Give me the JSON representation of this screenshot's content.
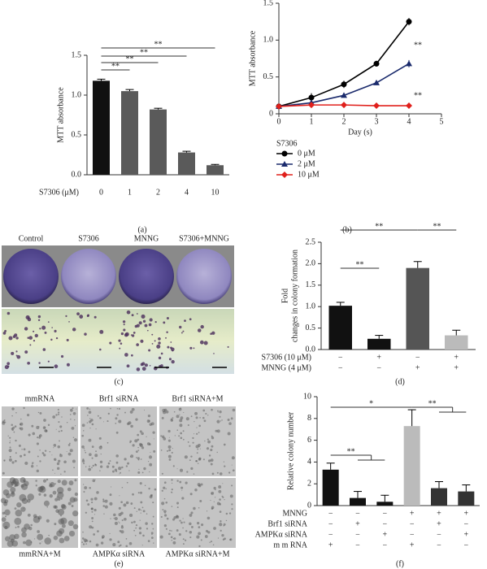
{
  "chart_data": [
    {
      "type": "bar",
      "panel": "(a)",
      "y_label": "MTT absorbance",
      "x_label": "S7306 (μM)",
      "categories": [
        "0",
        "1",
        "2",
        "4",
        "10"
      ],
      "values": [
        1.18,
        1.05,
        0.82,
        0.28,
        0.12
      ],
      "errors": [
        0.02,
        0.02,
        0.015,
        0.015,
        0.01
      ],
      "colors": [
        "#111111",
        "#5a5a5a",
        "#5a5a5a",
        "#5a5a5a",
        "#5a5a5a"
      ],
      "ylim": [
        0,
        1.5
      ],
      "yticks": [
        {
          "value": 0,
          "label": "0.0"
        },
        0.5,
        {
          "value": 1,
          "label": "1.0"
        },
        1.5
      ],
      "annotations": [
        "**",
        "**",
        "**",
        "**"
      ]
    },
    {
      "type": "line",
      "panel": "(b)",
      "y_label": "MTT absorbance",
      "x_label": "Day (s)",
      "legend_title": "S7306",
      "x": [
        0,
        1,
        2,
        3,
        4
      ],
      "xlim": [
        0,
        5
      ],
      "xticks": [
        0,
        1,
        2,
        3,
        4,
        5
      ],
      "ylim": [
        0,
        1.5
      ],
      "yticks": [
        0,
        0.5,
        {
          "value": 1,
          "label": "1.0"
        },
        1.5
      ],
      "series": [
        {
          "name": "0 μM",
          "color": "#000000",
          "marker": "circle",
          "values": [
            0.1,
            0.22,
            0.4,
            0.68,
            1.25
          ],
          "errors": [
            0.02,
            0.06,
            0.05,
            0.04,
            0.05
          ]
        },
        {
          "name": "2 μM",
          "color": "#1a2a6c",
          "marker": "triangle",
          "values": [
            0.1,
            0.15,
            0.25,
            0.42,
            0.68
          ],
          "errors": [
            0.02,
            0.03,
            0.02,
            0.03,
            0.05
          ]
        },
        {
          "name": "10 μM",
          "color": "#e0201c",
          "marker": "diamond",
          "values": [
            0.1,
            0.12,
            0.12,
            0.11,
            0.11
          ],
          "errors": [
            0.01,
            0.01,
            0.01,
            0.01,
            0.01
          ]
        }
      ],
      "annotations": [
        "**",
        "**"
      ]
    },
    {
      "type": "bar",
      "panel": "(d)",
      "y_label": [
        "Fold",
        "changes in colony formation"
      ],
      "values": [
        1.02,
        0.25,
        1.9,
        0.33
      ],
      "errors": [
        0.08,
        0.08,
        0.15,
        0.12
      ],
      "colors": [
        "#111111",
        "#111111",
        "#555555",
        "#bbbbbb"
      ],
      "ylim": [
        0,
        2.5
      ],
      "yticks": [
        {
          "value": 0,
          "label": "0.0"
        },
        0.5,
        {
          "value": 1,
          "label": "1.0"
        },
        1.5,
        {
          "value": 2,
          "label": "2.0"
        },
        2.5
      ],
      "rows": [
        {
          "label": "S7306 (10 μM)",
          "marks": [
            "−",
            "+",
            "−",
            "+"
          ]
        },
        {
          "label": "MNNG (4 μM)",
          "marks": [
            "−",
            "−",
            "+",
            "+"
          ]
        }
      ],
      "annotations": [
        "**",
        "**",
        "**"
      ]
    },
    {
      "type": "bar",
      "panel": "(f)",
      "y_label": "Relative colony number",
      "values": [
        3.3,
        0.7,
        0.35,
        7.3,
        1.6,
        1.3
      ],
      "errors": [
        0.6,
        0.6,
        0.6,
        1.5,
        0.6,
        0.6
      ],
      "colors": [
        "#111111",
        "#111111",
        "#111111",
        "#bbbbbb",
        "#333333",
        "#333333"
      ],
      "ylim": [
        0,
        10
      ],
      "yticks": [
        0,
        2,
        4,
        6,
        8,
        10
      ],
      "rows": [
        {
          "label": "MNNG",
          "marks": [
            "−",
            "−",
            "−",
            "+",
            "+",
            "+"
          ]
        },
        {
          "label": "Brf1 siRNA",
          "marks": [
            "−",
            "+",
            "−",
            "−",
            "+",
            "−"
          ]
        },
        {
          "label": "AMPKα siRNA",
          "marks": [
            "−",
            "−",
            "+",
            "−",
            "−",
            "+"
          ]
        },
        {
          "label": "m m RNA",
          "marks": [
            "+",
            "−",
            "−",
            "+",
            "−",
            "−"
          ]
        }
      ],
      "annotations": [
        "**",
        "*",
        "**"
      ]
    }
  ],
  "figure_c": {
    "panel": "(c)",
    "labels": [
      "Control",
      "S7306",
      "MNNG",
      "S7306+MNNG"
    ]
  },
  "figure_e": {
    "panel": "(e)",
    "labels": [
      "mmRNA",
      "Brf1 siRNA",
      "Brf1 siRNA+M",
      "mmRNA+M",
      "AMPKα siRNA",
      "AMPKα siRNA+M"
    ]
  }
}
